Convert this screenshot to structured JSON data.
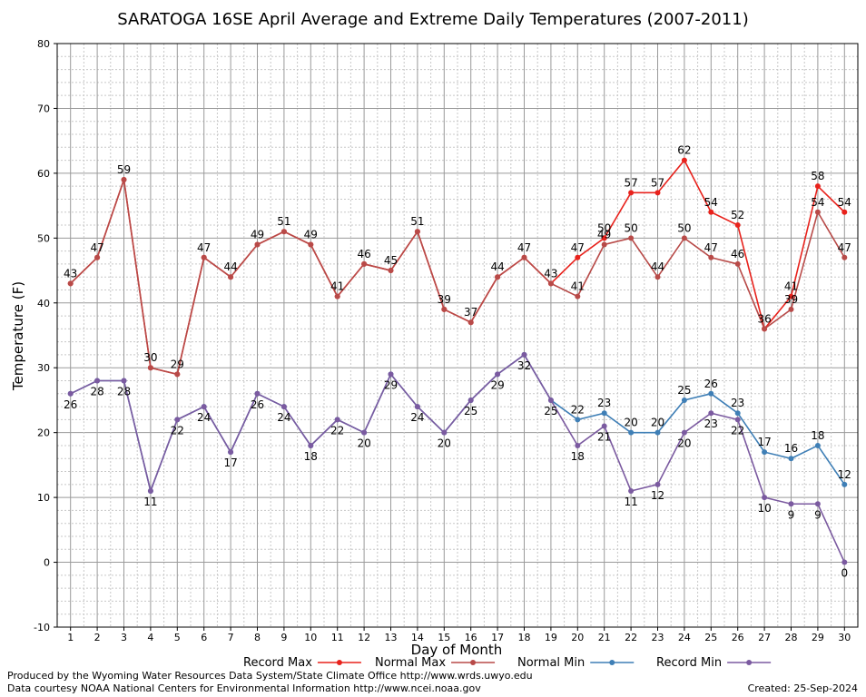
{
  "chart_data": {
    "type": "line",
    "title": "SARATOGA 16SE April Average and Extreme Daily Temperatures (2007-2011)",
    "xlabel": "Day of Month",
    "ylabel": "Temperature (F)",
    "ylim": [
      -10,
      80
    ],
    "yticks": [
      -10,
      0,
      10,
      20,
      30,
      40,
      50,
      60,
      70,
      80
    ],
    "xlim": [
      1,
      30
    ],
    "x": [
      1,
      2,
      3,
      4,
      5,
      6,
      7,
      8,
      9,
      10,
      11,
      12,
      13,
      14,
      15,
      16,
      17,
      18,
      19,
      20,
      21,
      22,
      23,
      24,
      25,
      26,
      27,
      28,
      29,
      30
    ],
    "grid": true,
    "legend_placement": "bottom",
    "series": [
      {
        "name": "Record Max",
        "color": "#e8221c",
        "values": [
          43,
          47,
          59,
          30,
          29,
          47,
          44,
          49,
          51,
          49,
          41,
          46,
          45,
          51,
          39,
          37,
          44,
          47,
          43,
          47,
          50,
          57,
          57,
          62,
          54,
          52,
          36,
          41,
          58,
          54
        ]
      },
      {
        "name": "Normal Max",
        "color": "#b84a48",
        "values": [
          43,
          47,
          59,
          30,
          29,
          47,
          44,
          49,
          51,
          49,
          41,
          46,
          45,
          51,
          39,
          37,
          44,
          47,
          43,
          41,
          49,
          50,
          44,
          50,
          47,
          46,
          36,
          39,
          54,
          47
        ]
      },
      {
        "name": "Normal Min",
        "color": "#3f7fb6",
        "values": [
          26,
          28,
          28,
          11,
          22,
          24,
          17,
          26,
          24,
          18,
          22,
          20,
          29,
          24,
          20,
          25,
          29,
          32,
          25,
          22,
          23,
          20,
          20,
          25,
          26,
          23,
          17,
          16,
          18,
          12
        ]
      },
      {
        "name": "Record Min",
        "color": "#7b5aa0",
        "values": [
          26,
          28,
          28,
          11,
          22,
          24,
          17,
          26,
          24,
          18,
          22,
          20,
          29,
          24,
          20,
          25,
          29,
          32,
          25,
          18,
          21,
          11,
          12,
          20,
          23,
          22,
          10,
          9,
          9,
          0
        ]
      }
    ]
  },
  "footer": {
    "produced_by": "Produced by the Wyoming Water Resources Data System/State Climate Office http://www.wrds.uwyo.edu",
    "courtesy": "Data courtesy NOAA National Centers for Environmental Information http://www.ncei.noaa.gov",
    "created": "Created:  25-Sep-2024"
  }
}
